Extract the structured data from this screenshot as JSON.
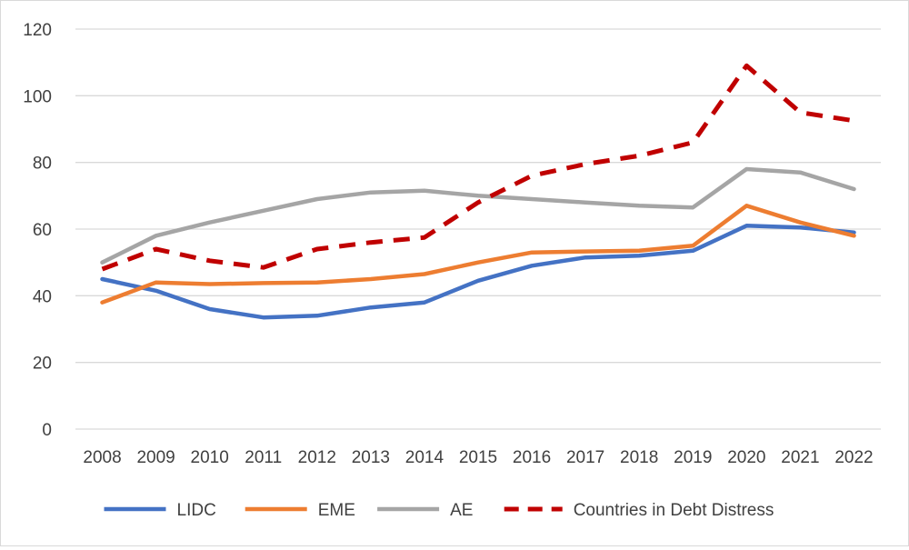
{
  "chart_data": {
    "type": "line",
    "title": "",
    "xlabel": "",
    "ylabel": "",
    "ylim": [
      0,
      120
    ],
    "y_ticks": [
      0,
      20,
      40,
      60,
      80,
      100,
      120
    ],
    "grid": "horizontal",
    "legend_position": "bottom",
    "categories": [
      "2008",
      "2009",
      "2010",
      "2011",
      "2012",
      "2013",
      "2014",
      "2015",
      "2016",
      "2017",
      "2018",
      "2019",
      "2020",
      "2021",
      "2022"
    ],
    "series": [
      {
        "name": "LIDC",
        "color": "#4472C4",
        "dashed": false,
        "values": [
          45,
          41.5,
          36,
          33.5,
          34,
          36.5,
          38,
          44.5,
          49,
          51.5,
          52,
          53.5,
          61,
          60.5,
          59
        ]
      },
      {
        "name": "EME",
        "color": "#ED7D31",
        "dashed": false,
        "values": [
          38,
          44,
          43.5,
          43.8,
          44,
          45,
          46.5,
          50,
          53,
          53.3,
          53.5,
          55,
          67,
          62,
          58
        ]
      },
      {
        "name": "AE",
        "color": "#A5A5A5",
        "dashed": false,
        "values": [
          50,
          58,
          62,
          65.5,
          69,
          71,
          71.5,
          70,
          69,
          68,
          67,
          66.5,
          78,
          77,
          72
        ]
      },
      {
        "name": "Countries in Debt Distress",
        "color": "#C00000",
        "dashed": true,
        "values": [
          48,
          54,
          50.5,
          48.5,
          54,
          56,
          57.5,
          68,
          76,
          79.5,
          82,
          86,
          109,
          95,
          92.5
        ]
      }
    ]
  }
}
